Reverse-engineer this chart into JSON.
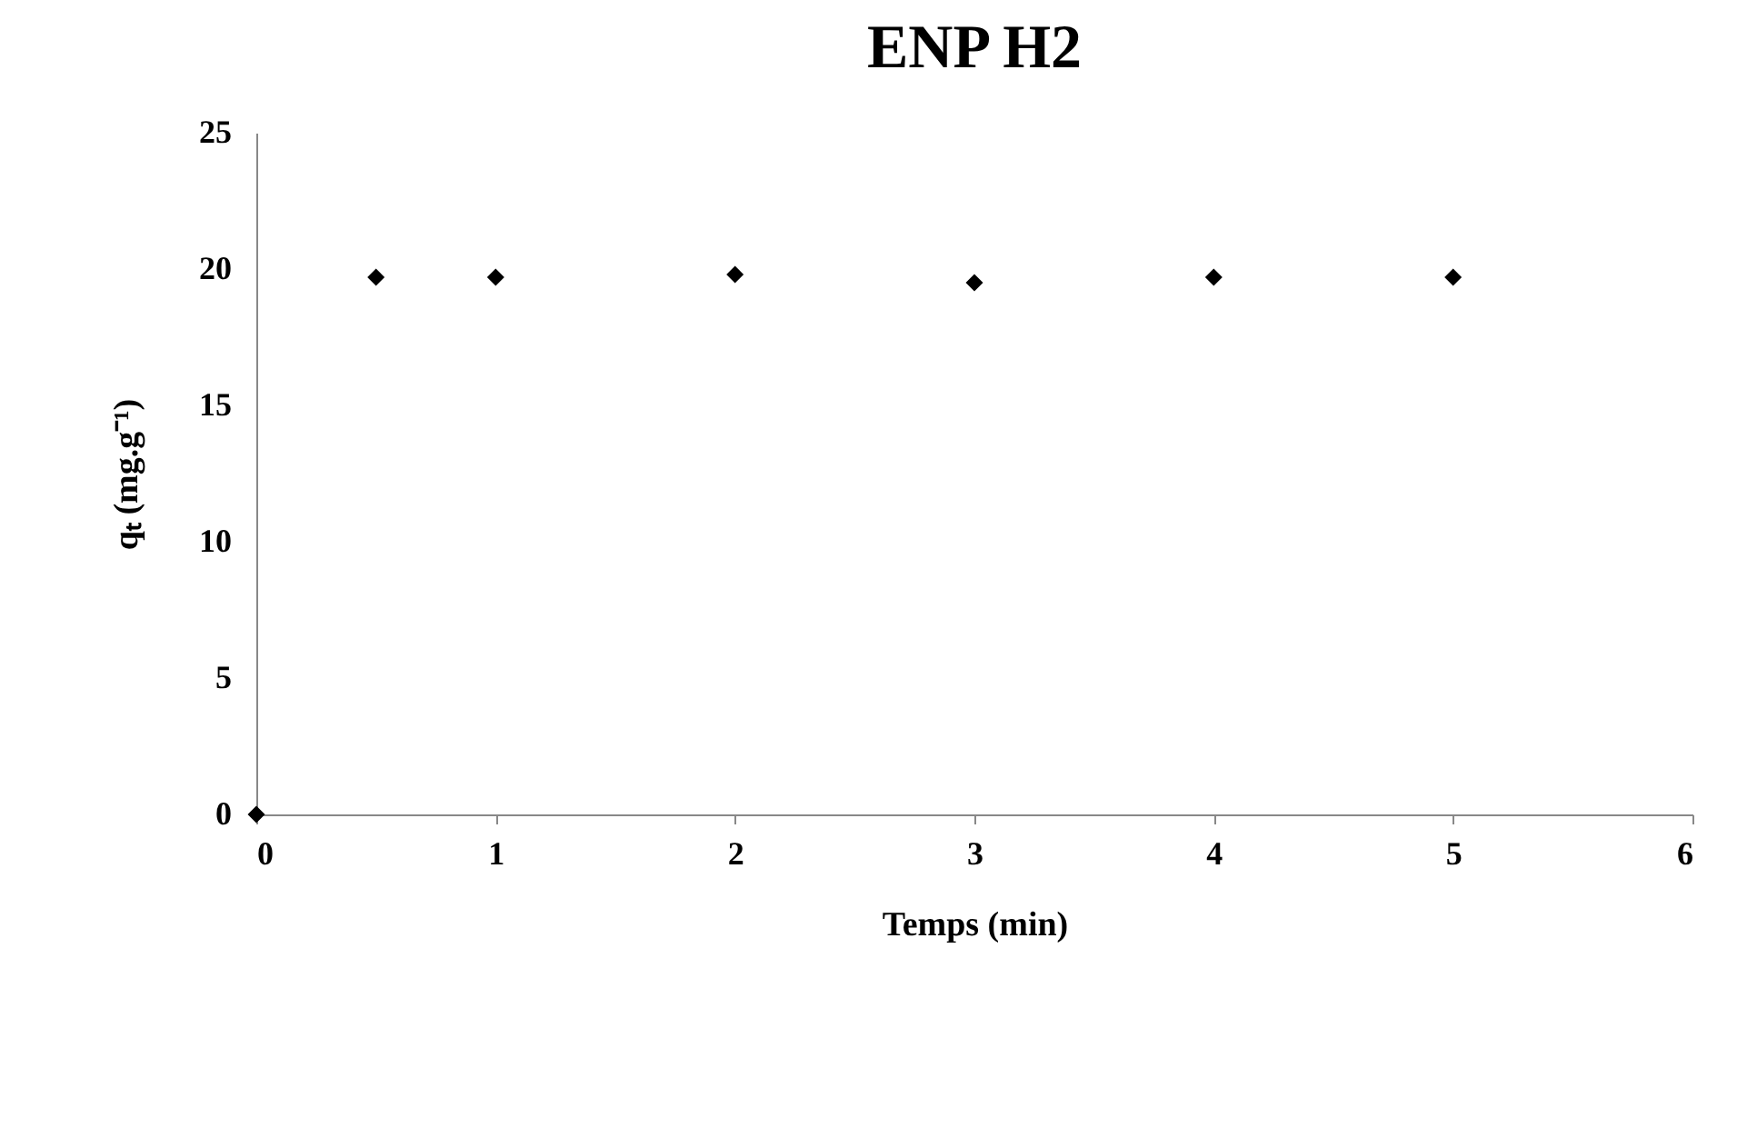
{
  "chart_data": {
    "type": "scatter",
    "title": "ENP H2",
    "xlabel": "Temps (min)",
    "ylabel": "qₜ (mg.g⁻¹)",
    "x": [
      0,
      0.5,
      1,
      2,
      3,
      4,
      5
    ],
    "series": [
      {
        "color": "#000000",
        "values": [
          0,
          19.7,
          19.7,
          19.8,
          19.5,
          19.7,
          19.7
        ]
      }
    ],
    "xlim": [
      0,
      6
    ],
    "xticks": [
      0,
      1,
      2,
      3,
      4,
      5,
      6
    ],
    "ylim": [
      0,
      25
    ],
    "yticks": [
      0,
      5,
      10,
      15,
      20,
      25
    ],
    "grid": false,
    "legend": false,
    "marker": "diamond"
  }
}
